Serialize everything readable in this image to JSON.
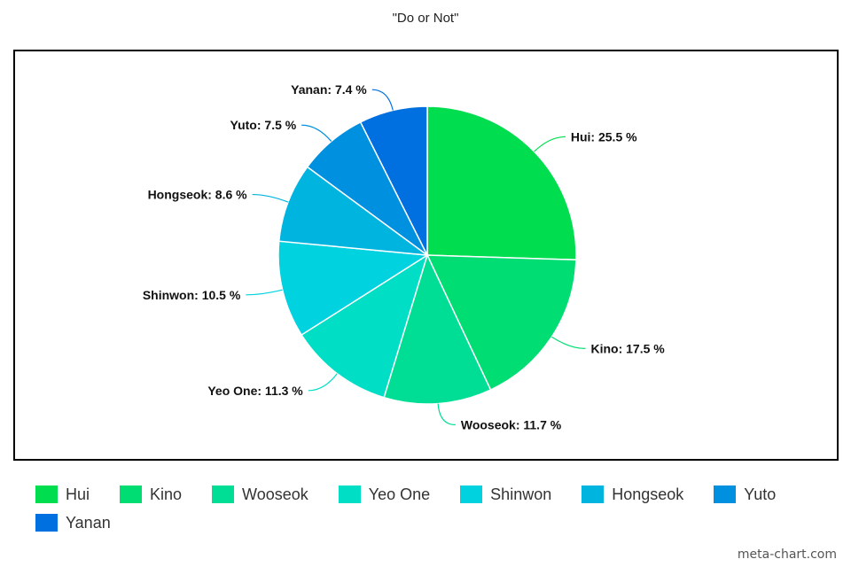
{
  "chart_data": {
    "type": "pie",
    "title": "\"Do or Not\"",
    "slices": [
      {
        "name": "Hui",
        "value": 25.5,
        "label": "Hui: 25.5 %",
        "color": "#00de50"
      },
      {
        "name": "Kino",
        "value": 17.5,
        "label": "Kino: 17.5 %",
        "color": "#00de73"
      },
      {
        "name": "Wooseok",
        "value": 11.7,
        "label": "Wooseok: 11.7 %",
        "color": "#00de96"
      },
      {
        "name": "Yeo One",
        "value": 11.3,
        "label": "Yeo One: 11.3 %",
        "color": "#00dec6"
      },
      {
        "name": "Shinwon",
        "value": 10.5,
        "label": "Shinwon: 10.5 %",
        "color": "#00d2e0"
      },
      {
        "name": "Hongseok",
        "value": 8.6,
        "label": "Hongseok: 8.6 %",
        "color": "#00b4e0"
      },
      {
        "name": "Yuto",
        "value": 7.5,
        "label": "Yuto: 7.5 %",
        "color": "#0090e0"
      },
      {
        "name": "Yanan",
        "value": 7.4,
        "label": "Yanan: 7.4 %",
        "color": "#0070e0"
      }
    ],
    "legend_position": "bottom"
  },
  "watermark": "meta-chart.com"
}
